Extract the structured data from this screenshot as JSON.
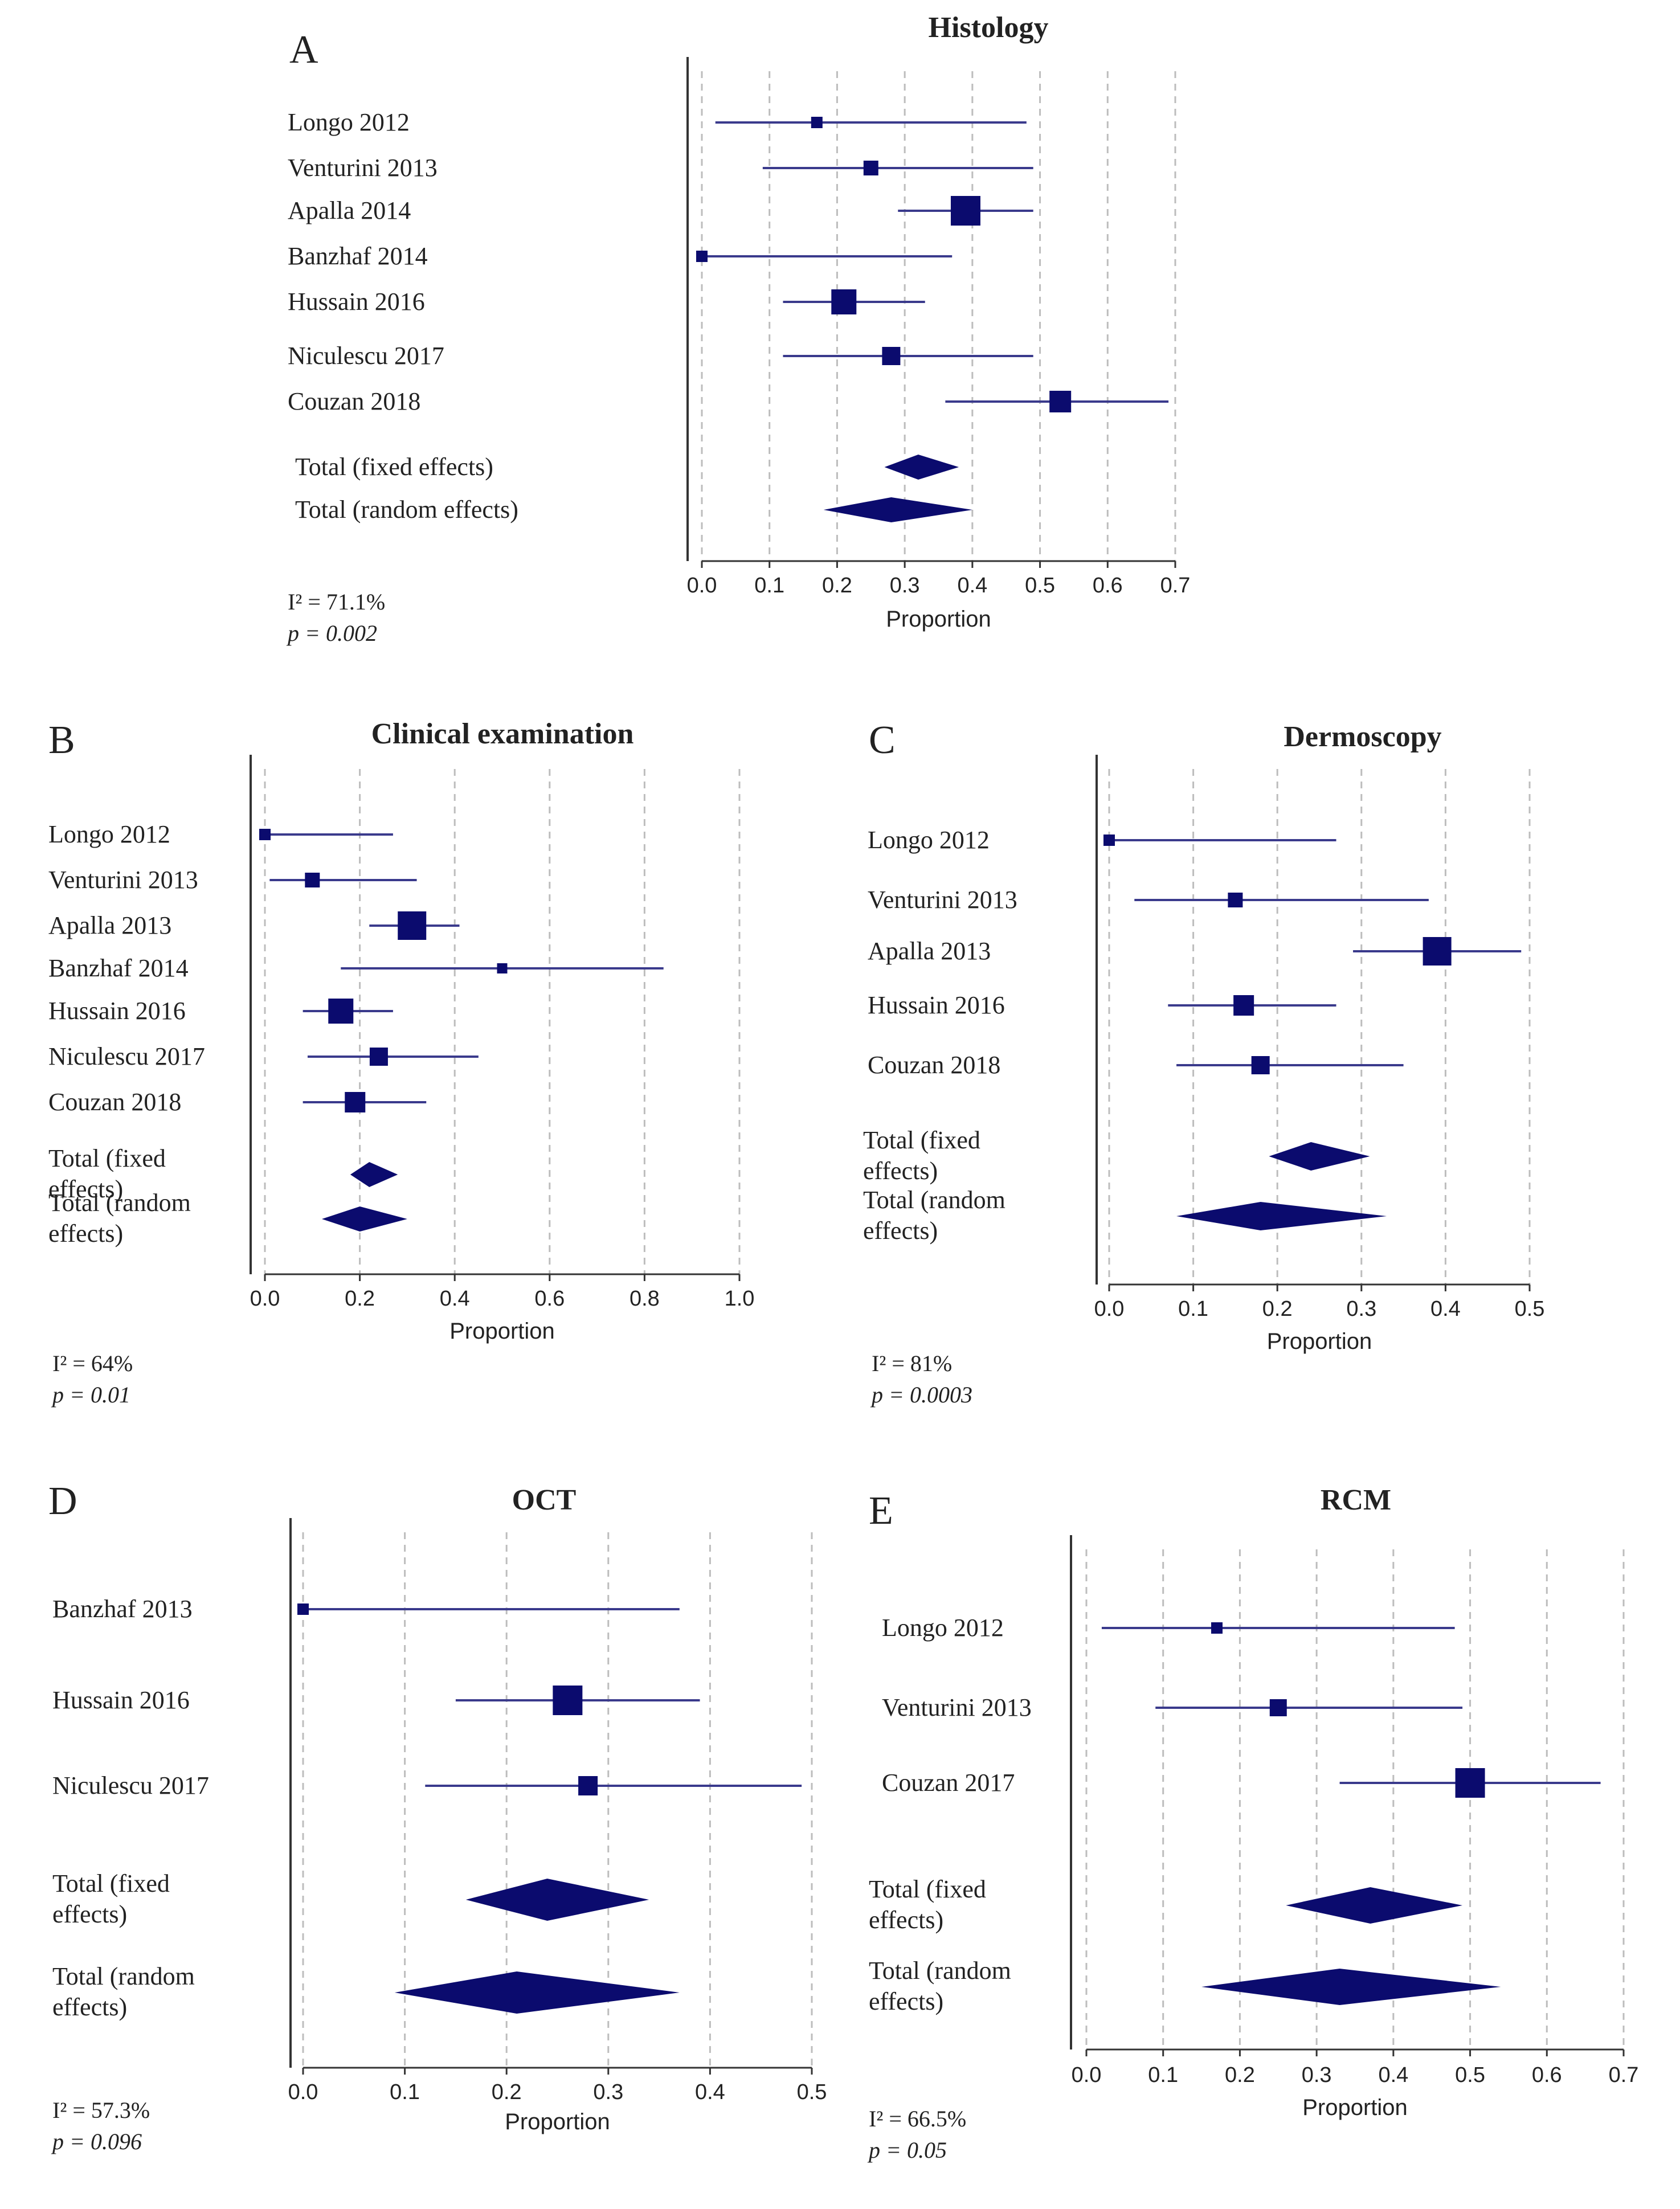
{
  "colors": {
    "mark": "#0b0b6e",
    "line": "#3a3a8c",
    "axis": "#333333",
    "grid": "#bdbdbd",
    "text": "#222222"
  },
  "chart_data": [
    {
      "panel": "A",
      "type": "forest",
      "title": "Histology",
      "xlabel": "Proportion",
      "xlim": [
        0,
        0.7
      ],
      "ticks": [
        "0.0",
        "0.1",
        "0.2",
        "0.3",
        "0.4",
        "0.5",
        "0.6",
        "0.7"
      ],
      "studies": [
        {
          "label": "Longo 2012",
          "est": 0.17,
          "lo": 0.02,
          "hi": 0.48,
          "weight": 1
        },
        {
          "label": "Venturini 2013",
          "est": 0.25,
          "lo": 0.09,
          "hi": 0.49,
          "weight": 1.3
        },
        {
          "label": "Apalla 2014",
          "est": 0.39,
          "lo": 0.29,
          "hi": 0.49,
          "weight": 2.6
        },
        {
          "label": "Banzhaf 2014",
          "est": 0.0,
          "lo": 0.0,
          "hi": 0.37,
          "weight": 1
        },
        {
          "label": "Hussain 2016",
          "est": 0.21,
          "lo": 0.12,
          "hi": 0.33,
          "weight": 2.2
        },
        {
          "label": "Niculescu 2017",
          "est": 0.28,
          "lo": 0.12,
          "hi": 0.49,
          "weight": 1.6
        },
        {
          "label": "Couzan 2018",
          "est": 0.53,
          "lo": 0.36,
          "hi": 0.69,
          "weight": 1.9
        }
      ],
      "summaries": [
        {
          "label": "Total (fixed effects)",
          "est": 0.32,
          "lo": 0.27,
          "hi": 0.38
        },
        {
          "label": "Total (random effects)",
          "est": 0.28,
          "lo": 0.18,
          "hi": 0.4
        }
      ],
      "i2": "I² = 71.1%",
      "p": "p = 0.002"
    },
    {
      "panel": "B",
      "type": "forest",
      "title": "Clinical examination",
      "xlabel": "Proportion",
      "xlim": [
        0,
        1.0
      ],
      "ticks": [
        "0.0",
        "0.2",
        "0.4",
        "0.6",
        "0.8",
        "1.0"
      ],
      "studies": [
        {
          "label": "Longo 2012",
          "est": 0.0,
          "lo": 0.0,
          "hi": 0.27,
          "weight": 1
        },
        {
          "label": "Venturini 2013",
          "est": 0.1,
          "lo": 0.01,
          "hi": 0.32,
          "weight": 1.3
        },
        {
          "label": "Apalla 2013",
          "est": 0.31,
          "lo": 0.22,
          "hi": 0.41,
          "weight": 2.5
        },
        {
          "label": "Banzhaf 2014",
          "est": 0.5,
          "lo": 0.16,
          "hi": 0.84,
          "weight": 0.9
        },
        {
          "label": "Hussain 2016",
          "est": 0.16,
          "lo": 0.08,
          "hi": 0.27,
          "weight": 2.2
        },
        {
          "label": "Niculescu 2017",
          "est": 0.24,
          "lo": 0.09,
          "hi": 0.45,
          "weight": 1.6
        },
        {
          "label": "Couzan 2018",
          "est": 0.19,
          "lo": 0.08,
          "hi": 0.34,
          "weight": 1.8
        }
      ],
      "summaries": [
        {
          "label": "Total (fixed effects)",
          "est": 0.22,
          "lo": 0.18,
          "hi": 0.28
        },
        {
          "label": "Total (random effects)",
          "est": 0.2,
          "lo": 0.12,
          "hi": 0.3
        }
      ],
      "i2": "I² = 64%",
      "p": "p = 0.01"
    },
    {
      "panel": "C",
      "type": "forest",
      "title": "Dermoscopy",
      "xlabel": "Proportion",
      "xlim": [
        0,
        0.5
      ],
      "ticks": [
        "0.0",
        "0.1",
        "0.2",
        "0.3",
        "0.4",
        "0.5"
      ],
      "studies": [
        {
          "label": "Longo 2012",
          "est": 0.0,
          "lo": 0.0,
          "hi": 0.27,
          "weight": 1
        },
        {
          "label": "Venturini 2013",
          "est": 0.15,
          "lo": 0.03,
          "hi": 0.38,
          "weight": 1.3
        },
        {
          "label": "Apalla 2013",
          "est": 0.39,
          "lo": 0.29,
          "hi": 0.49,
          "weight": 2.5
        },
        {
          "label": "Hussain 2016",
          "est": 0.16,
          "lo": 0.07,
          "hi": 0.27,
          "weight": 1.8
        },
        {
          "label": "Couzan 2018",
          "est": 0.18,
          "lo": 0.08,
          "hi": 0.35,
          "weight": 1.6
        }
      ],
      "summaries": [
        {
          "label": "Total (fixed effects)",
          "est": 0.24,
          "lo": 0.19,
          "hi": 0.31
        },
        {
          "label": "Total (random effects)",
          "est": 0.18,
          "lo": 0.08,
          "hi": 0.33
        }
      ],
      "i2": "I² = 81%",
      "p": "p = 0.0003"
    },
    {
      "panel": "D",
      "type": "forest",
      "title": "OCT",
      "xlabel": "Proportion",
      "xlim": [
        0,
        0.5
      ],
      "ticks": [
        "0.0",
        "0.1",
        "0.2",
        "0.3",
        "0.4",
        "0.5"
      ],
      "studies": [
        {
          "label": "Banzhaf 2013",
          "est": 0.0,
          "lo": 0.0,
          "hi": 0.37,
          "weight": 1
        },
        {
          "label": "Hussain 2016",
          "est": 0.26,
          "lo": 0.15,
          "hi": 0.39,
          "weight": 2.6
        },
        {
          "label": "Niculescu  2017",
          "est": 0.28,
          "lo": 0.12,
          "hi": 0.49,
          "weight": 1.7
        }
      ],
      "summaries": [
        {
          "label": "Total (fixed effects)",
          "est": 0.24,
          "lo": 0.16,
          "hi": 0.34
        },
        {
          "label": "Total (random effects)",
          "est": 0.21,
          "lo": 0.09,
          "hi": 0.37
        }
      ],
      "i2": "I² = 57.3%",
      "p": "p = 0.096"
    },
    {
      "panel": "E",
      "type": "forest",
      "title": "RCM",
      "xlabel": "Proportion",
      "xlim": [
        0,
        0.7
      ],
      "ticks": [
        "0.0",
        "0.1",
        "0.2",
        "0.3",
        "0.4",
        "0.5",
        "0.6",
        "0.7"
      ],
      "studies": [
        {
          "label": "Longo 2012",
          "est": 0.17,
          "lo": 0.02,
          "hi": 0.48,
          "weight": 1
        },
        {
          "label": "Venturini 2013",
          "est": 0.25,
          "lo": 0.09,
          "hi": 0.49,
          "weight": 1.5
        },
        {
          "label": "Couzan 2017",
          "est": 0.5,
          "lo": 0.33,
          "hi": 0.67,
          "weight": 2.6
        }
      ],
      "summaries": [
        {
          "label": "Total (fixed effects)",
          "est": 0.37,
          "lo": 0.26,
          "hi": 0.49
        },
        {
          "label": "Total (random effects)",
          "est": 0.33,
          "lo": 0.15,
          "hi": 0.54
        }
      ],
      "i2": "I² = 66.5%",
      "p": "p = 0.05"
    }
  ]
}
